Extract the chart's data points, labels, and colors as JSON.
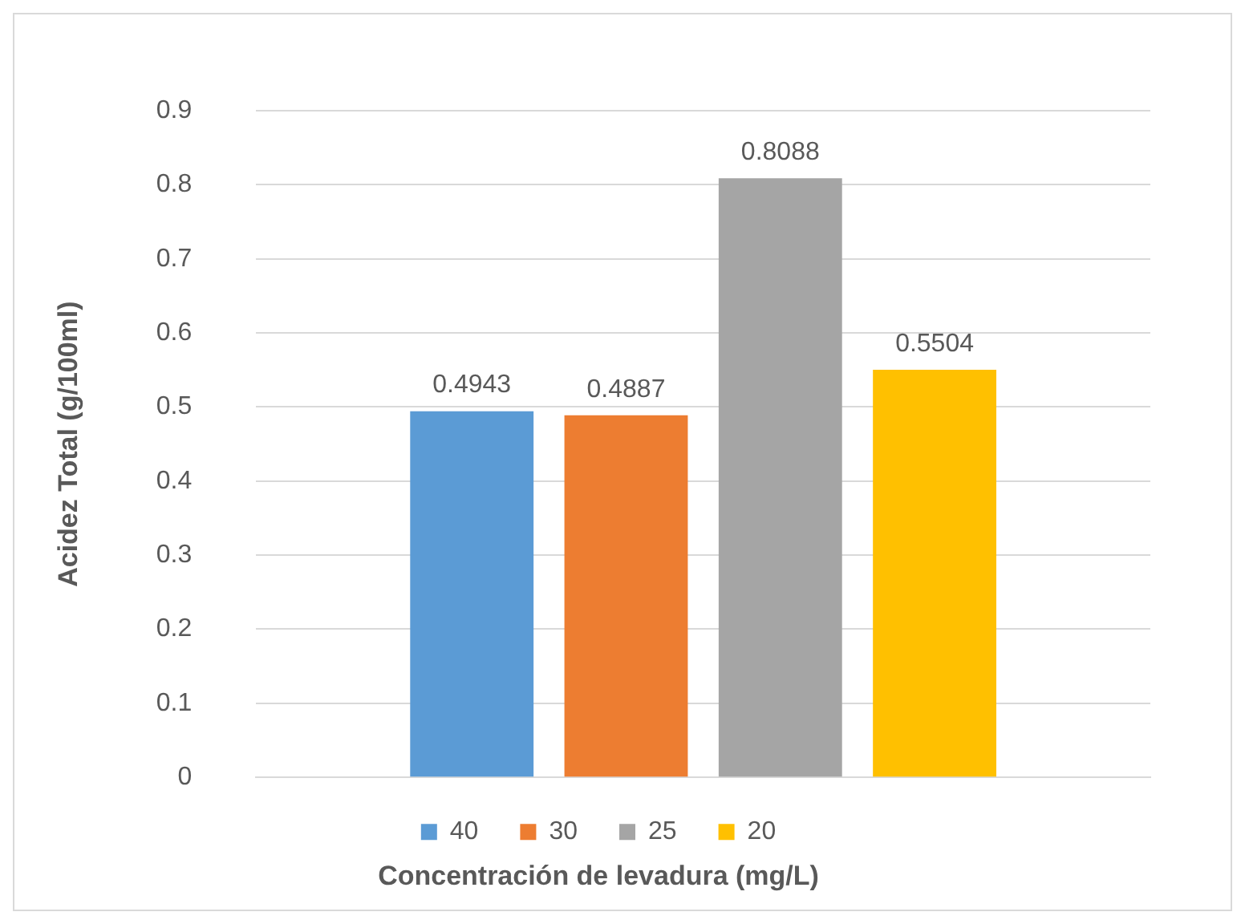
{
  "chart_data": {
    "type": "bar",
    "xlabel": "Concentración de levadura (mg/L)",
    "ylabel": "Acidez Total (g/100ml)",
    "categories": [
      null
    ],
    "series": [
      {
        "name": "40",
        "color": "#5b9bd5",
        "values": [
          0.4943
        ]
      },
      {
        "name": "30",
        "color": "#ed7d31",
        "values": [
          0.4887
        ]
      },
      {
        "name": "25",
        "color": "#a5a5a5",
        "values": [
          0.8088
        ]
      },
      {
        "name": "20",
        "color": "#ffc000",
        "values": [
          0.5504
        ]
      }
    ],
    "ylim": [
      0,
      0.9
    ],
    "yticks": [
      0,
      0.1,
      0.2,
      0.3,
      0.4,
      0.5,
      0.6,
      0.7,
      0.8,
      0.9
    ],
    "grid": "y",
    "legend": "bottom",
    "data_labels": true
  }
}
